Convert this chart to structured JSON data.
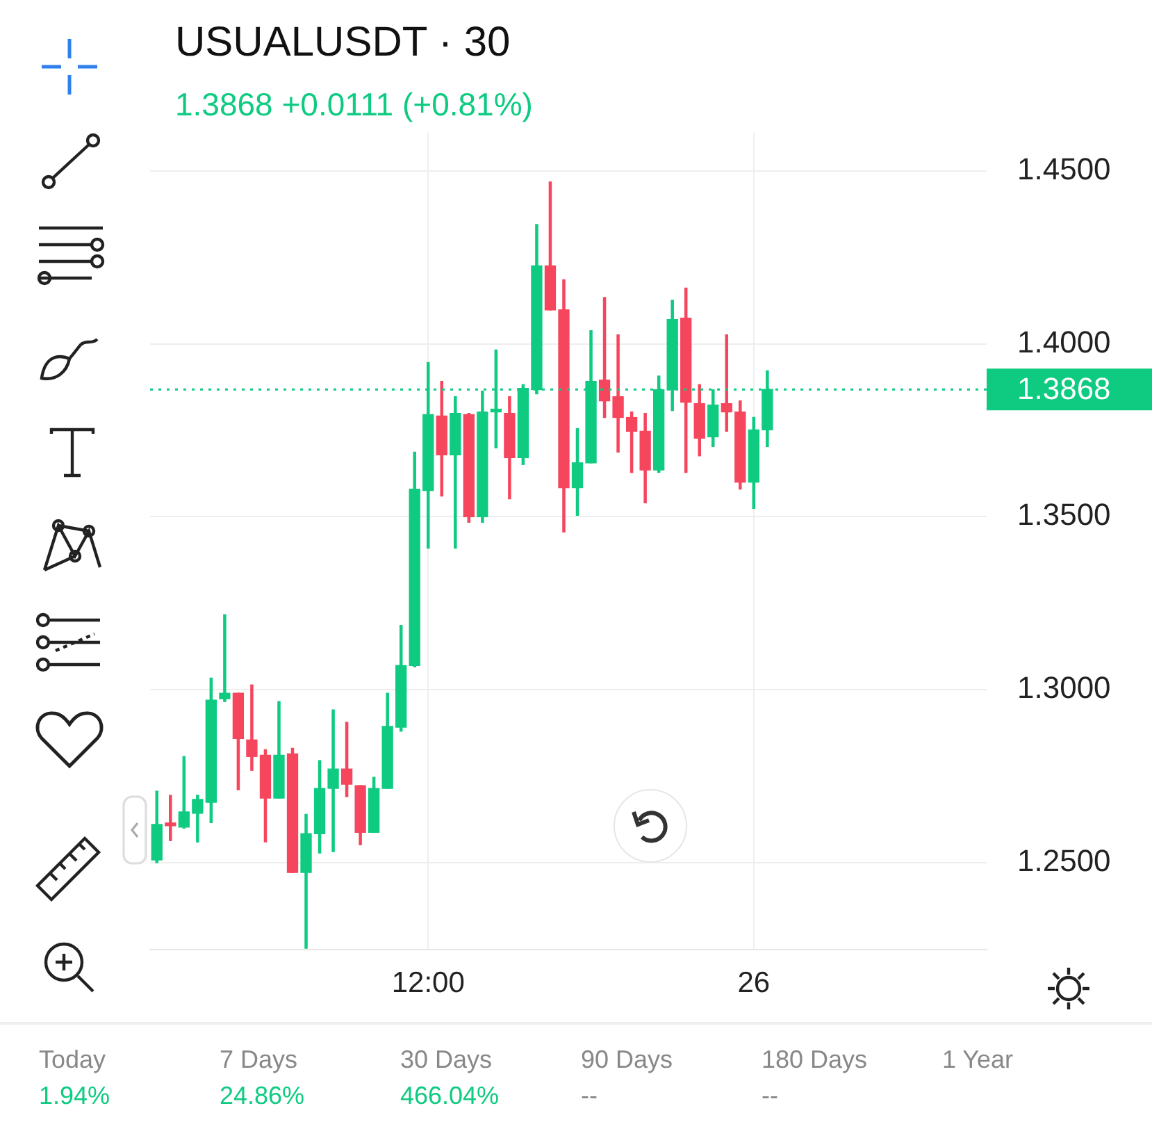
{
  "chart_data": {
    "type": "candlestick",
    "title": "USUALUSDT · 30",
    "subtitle": "1.3868  +0.0111 (+0.81%)",
    "x": [
      "--12-25T02:00",
      "--12-25T02:30",
      "--12-25T03:00",
      "--12-25T03:30",
      "--12-25T04:00",
      "--12-25T04:30",
      "--12-25T05:00",
      "--12-25T05:30",
      "--12-25T06:00",
      "--12-25T06:30",
      "--12-25T07:00",
      "--12-25T07:30",
      "--12-25T08:00",
      "--12-25T08:30",
      "--12-25T09:00",
      "--12-25T09:30",
      "--12-25T10:00",
      "--12-25T10:30",
      "--12-25T11:00",
      "--12-25T11:30",
      "--12-25T12:00",
      "--12-25T12:30",
      "--12-25T13:00",
      "--12-25T13:30",
      "--12-25T14:00",
      "--12-25T14:30",
      "--12-25T15:00",
      "--12-25T15:30",
      "--12-25T16:00",
      "--12-25T16:30",
      "--12-25T17:00",
      "--12-25T17:30",
      "--12-25T18:00",
      "--12-25T18:30",
      "--12-25T19:00",
      "--12-25T19:30",
      "--12-25T20:00",
      "--12-25T20:30",
      "--12-25T21:00",
      "--12-25T21:30",
      "--12-25T22:00",
      "--12-25T22:30",
      "--12-25T23:00",
      "--12-25T23:30",
      "--12-26T00:00",
      "--12-26T00:30"
    ],
    "ohlc": [
      [
        1.2508,
        1.2707,
        1.25,
        1.2611
      ],
      [
        1.2615,
        1.2695,
        1.2564,
        1.2607
      ],
      [
        1.2603,
        1.2807,
        1.26,
        1.2647
      ],
      [
        1.2643,
        1.2695,
        1.256,
        1.2683
      ],
      [
        1.2675,
        1.3034,
        1.2616,
        1.297
      ],
      [
        1.2974,
        1.3217,
        1.2966,
        1.299
      ],
      [
        1.299,
        1.299,
        1.2711,
        1.2859
      ],
      [
        1.2855,
        1.3014,
        1.2767,
        1.2807
      ],
      [
        1.2811,
        1.2827,
        1.256,
        1.2687
      ],
      [
        1.2687,
        1.2966,
        1.2687,
        1.2811
      ],
      [
        1.2815,
        1.2831,
        1.2472,
        1.2472
      ],
      [
        1.2472,
        1.264,
        1.2253,
        1.2584
      ],
      [
        1.2584,
        1.2795,
        1.2528,
        1.2715
      ],
      [
        1.2715,
        1.2942,
        1.2532,
        1.2771
      ],
      [
        1.2771,
        1.2906,
        1.2691,
        1.2727
      ],
      [
        1.2723,
        1.2723,
        1.2552,
        1.2588
      ],
      [
        1.2588,
        1.2747,
        1.2588,
        1.2715
      ],
      [
        1.2715,
        1.299,
        1.2715,
        1.2894
      ],
      [
        1.2892,
        1.3186,
        1.288,
        1.307
      ],
      [
        1.307,
        1.3687,
        1.3066,
        1.358
      ],
      [
        1.3576,
        1.3946,
        1.3409,
        1.3795
      ],
      [
        1.3791,
        1.3891,
        1.356,
        1.3679
      ],
      [
        1.3679,
        1.3847,
        1.3409,
        1.3799
      ],
      [
        1.3795,
        1.3799,
        1.3484,
        1.35
      ],
      [
        1.35,
        1.3863,
        1.3484,
        1.3803
      ],
      [
        1.3803,
        1.3982,
        1.3699,
        1.3811
      ],
      [
        1.3799,
        1.3847,
        1.3552,
        1.3671
      ],
      [
        1.3671,
        1.3882,
        1.3651,
        1.3871
      ],
      [
        1.3867,
        1.4345,
        1.3855,
        1.4225
      ],
      [
        1.4225,
        1.4468,
        1.4098,
        1.4098
      ],
      [
        1.4098,
        1.4185,
        1.3456,
        1.3584
      ],
      [
        1.3584,
        1.3755,
        1.3504,
        1.3656
      ],
      [
        1.3656,
        1.4038,
        1.3656,
        1.3891
      ],
      [
        1.3895,
        1.4134,
        1.3787,
        1.3835
      ],
      [
        1.3847,
        1.4026,
        1.3687,
        1.3787
      ],
      [
        1.3787,
        1.3803,
        1.3628,
        1.3747
      ],
      [
        1.3747,
        1.3799,
        1.354,
        1.3635
      ],
      [
        1.3635,
        1.3907,
        1.3628,
        1.3867
      ],
      [
        1.3867,
        1.4126,
        1.3807,
        1.407
      ],
      [
        1.4074,
        1.4161,
        1.3628,
        1.3831
      ],
      [
        1.3827,
        1.3882,
        1.3676,
        1.3727
      ],
      [
        1.3731,
        1.3867,
        1.3703,
        1.3823
      ],
      [
        1.3827,
        1.4026,
        1.3747,
        1.3803
      ],
      [
        1.3803,
        1.3835,
        1.358,
        1.36
      ],
      [
        1.36,
        1.3787,
        1.3524,
        1.3751
      ],
      [
        1.3751,
        1.3922,
        1.3703,
        1.3868
      ]
    ],
    "colors": [
      "#0ecb81",
      "#f6465d",
      "#0ecb81",
      "#0ecb81",
      "#0ecb81",
      "#0ecb81",
      "#f6465d",
      "#f6465d",
      "#f6465d",
      "#0ecb81",
      "#f6465d",
      "#0ecb81",
      "#0ecb81",
      "#0ecb81",
      "#f6465d",
      "#f6465d",
      "#0ecb81",
      "#0ecb81",
      "#0ecb81",
      "#0ecb81",
      "#0ecb81",
      "#f6465d",
      "#0ecb81",
      "#f6465d",
      "#0ecb81",
      "#0ecb81",
      "#f6465d",
      "#0ecb81",
      "#0ecb81",
      "#f6465d",
      "#f6465d",
      "#0ecb81",
      "#0ecb81",
      "#f6465d",
      "#f6465d",
      "#f6465d",
      "#f6465d",
      "#0ecb81",
      "#0ecb81",
      "#f6465d",
      "#f6465d",
      "#0ecb81",
      "#f6465d",
      "#f6465d",
      "#0ecb81",
      "#0ecb81"
    ],
    "xlim": [
      "--12-25T01:45",
      "--12-26T08:35"
    ],
    "xticks": [
      {
        "value": "--12-25T12:00",
        "label": "12:00"
      },
      {
        "value": "--12-26T00:00",
        "label": "26"
      }
    ],
    "ylim": [
      1.2249,
      1.4611
    ],
    "yticks": [
      {
        "value": 1.25,
        "label": "1.2500"
      },
      {
        "value": 1.3,
        "label": "1.3000"
      },
      {
        "value": 1.35,
        "label": "1.3500"
      },
      {
        "value": 1.4,
        "label": "1.4000"
      },
      {
        "value": 1.45,
        "label": "1.4500"
      }
    ],
    "grid": true,
    "ref_lines": [
      {
        "axis": "y",
        "value": 1.3868,
        "label": "1.3868",
        "color": "#0ecb81",
        "line_style": "dotted"
      }
    ],
    "annotations": [
      "Today",
      "1.94%",
      "7 Days",
      "24.86%",
      "30 Days",
      "466.04%",
      "90 Days",
      "--",
      "180 Days",
      "--",
      "1 Year"
    ]
  }
}
